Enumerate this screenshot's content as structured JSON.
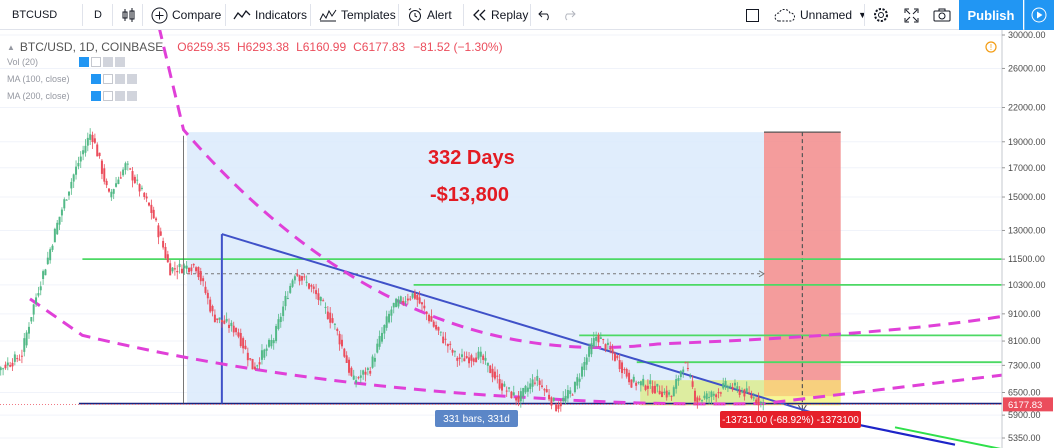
{
  "toolbar": {
    "symbol": "BTCUSD",
    "interval": "D",
    "compare_label": "Compare",
    "indicators_label": "Indicators",
    "templates_label": "Templates",
    "alert_label": "Alert",
    "replay_label": "Replay",
    "layout_name": "Unnamed",
    "publish_label": "Publish",
    "icons": [
      "bar-style-icon",
      "compare-plus-icon",
      "indicators-icon",
      "templates-icon",
      "alarm-clock-icon",
      "replay-icon",
      "undo-icon",
      "redo-icon",
      "cloud-icon",
      "gear-icon",
      "fullscreen-icon",
      "camera-icon",
      "play-icon"
    ]
  },
  "legend": {
    "symbol_line": "BTC/USD, 1D, COINBASE",
    "open": "O6259.35",
    "high": "H6293.38",
    "low": "L6160.99",
    "close": "C6177.83",
    "change": "−81.52 (−1.30%)",
    "indicators": [
      "Vol (20)",
      "MA (100, close)",
      "MA (200, close)"
    ]
  },
  "annotations": {
    "days": "332 Days",
    "amount": "-$13,800",
    "bars": "331 bars, 331d",
    "drop": "-13731.00 (-68.92%) -1373100"
  },
  "colors": {
    "up": "#53b987",
    "down": "#eb4d5c",
    "accent": "#2196f3",
    "magenta": "#e040d8",
    "trend_blue": "#3f51c8",
    "green_line": "#4cd964",
    "red_zone": "#f28b8b",
    "blue_zone": "#dbeafb",
    "yellow_zone": "#f5f58a"
  },
  "chart_data": {
    "type": "candlestick",
    "y_axis": {
      "scale": "log",
      "ticks": [
        "30000.00",
        "26000.00",
        "22000.00",
        "19000.00",
        "17000.00",
        "15000.00",
        "13000.00",
        "11500.00",
        "10300.00",
        "9100.00",
        "8100.00",
        "7300.00",
        "6500.00",
        "5900.00",
        "5350.00"
      ],
      "range": [
        5100,
        31000
      ],
      "current_price": "6177.83"
    },
    "price_path": [
      [
        -120,
        6800
      ],
      [
        -95,
        7600
      ],
      [
        -80,
        11500
      ],
      [
        -65,
        16500
      ],
      [
        -55,
        19800
      ],
      [
        -45,
        15000
      ],
      [
        -35,
        17200
      ],
      [
        -20,
        14000
      ],
      [
        -10,
        11000
      ],
      [
        5,
        11200
      ],
      [
        15,
        9000
      ],
      [
        28,
        8500
      ],
      [
        38,
        7200
      ],
      [
        50,
        8200
      ],
      [
        62,
        10900
      ],
      [
        72,
        10100
      ],
      [
        85,
        8600
      ],
      [
        95,
        6800
      ],
      [
        105,
        7200
      ],
      [
        118,
        9400
      ],
      [
        130,
        9900
      ],
      [
        142,
        8600
      ],
      [
        155,
        7500
      ],
      [
        168,
        7600
      ],
      [
        180,
        6700
      ],
      [
        190,
        6300
      ],
      [
        200,
        6900
      ],
      [
        212,
        6100
      ],
      [
        222,
        6600
      ],
      [
        235,
        8300
      ],
      [
        245,
        7600
      ],
      [
        255,
        6800
      ],
      [
        265,
        6700
      ],
      [
        278,
        6400
      ],
      [
        285,
        7400
      ],
      [
        292,
        6300
      ],
      [
        300,
        6400
      ],
      [
        310,
        6700
      ],
      [
        320,
        6500
      ],
      [
        331,
        6178
      ]
    ],
    "horizontal_levels": [
      11500,
      10300,
      8300,
      7400
    ],
    "support_level": 6200,
    "measure": {
      "days": 332,
      "bars": 331,
      "change": -13731.0,
      "change_pct": -68.92
    }
  }
}
